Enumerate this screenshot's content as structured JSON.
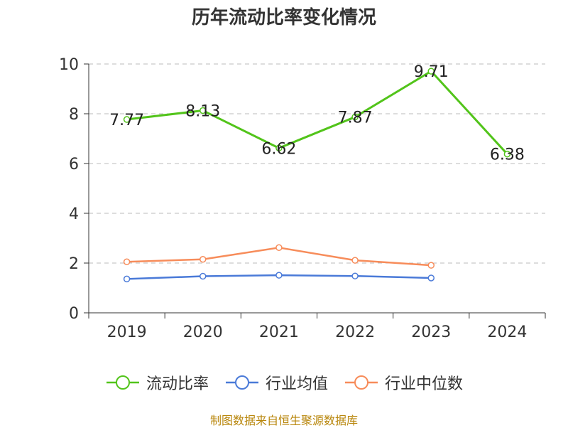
{
  "title": "历年流动比率变化情况",
  "source": "制图数据来自恒生聚源数据库",
  "colors": {
    "ratio": "#52c41a",
    "avg": "#4a7ad8",
    "median": "#f78c5a",
    "grid": "#bbbbbb",
    "axis": "#333333"
  },
  "chart_data": {
    "type": "line",
    "categories": [
      "2019",
      "2020",
      "2021",
      "2022",
      "2023",
      "2024"
    ],
    "ylim": [
      0,
      10
    ],
    "yticks": [
      0,
      2,
      4,
      6,
      8,
      10
    ],
    "grid": true,
    "legend_position": "bottom",
    "series": [
      {
        "name": "流动比率",
        "values": [
          7.77,
          8.13,
          6.62,
          7.87,
          9.71,
          6.38
        ],
        "labels": [
          "7.77",
          "8.13",
          "6.62",
          "7.87",
          "9.71",
          "6.38"
        ]
      },
      {
        "name": "行业均值",
        "values": [
          1.36,
          1.47,
          1.51,
          1.48,
          1.4,
          null
        ]
      },
      {
        "name": "行业中位数",
        "values": [
          2.05,
          2.15,
          2.62,
          2.11,
          1.91,
          null
        ]
      }
    ]
  }
}
